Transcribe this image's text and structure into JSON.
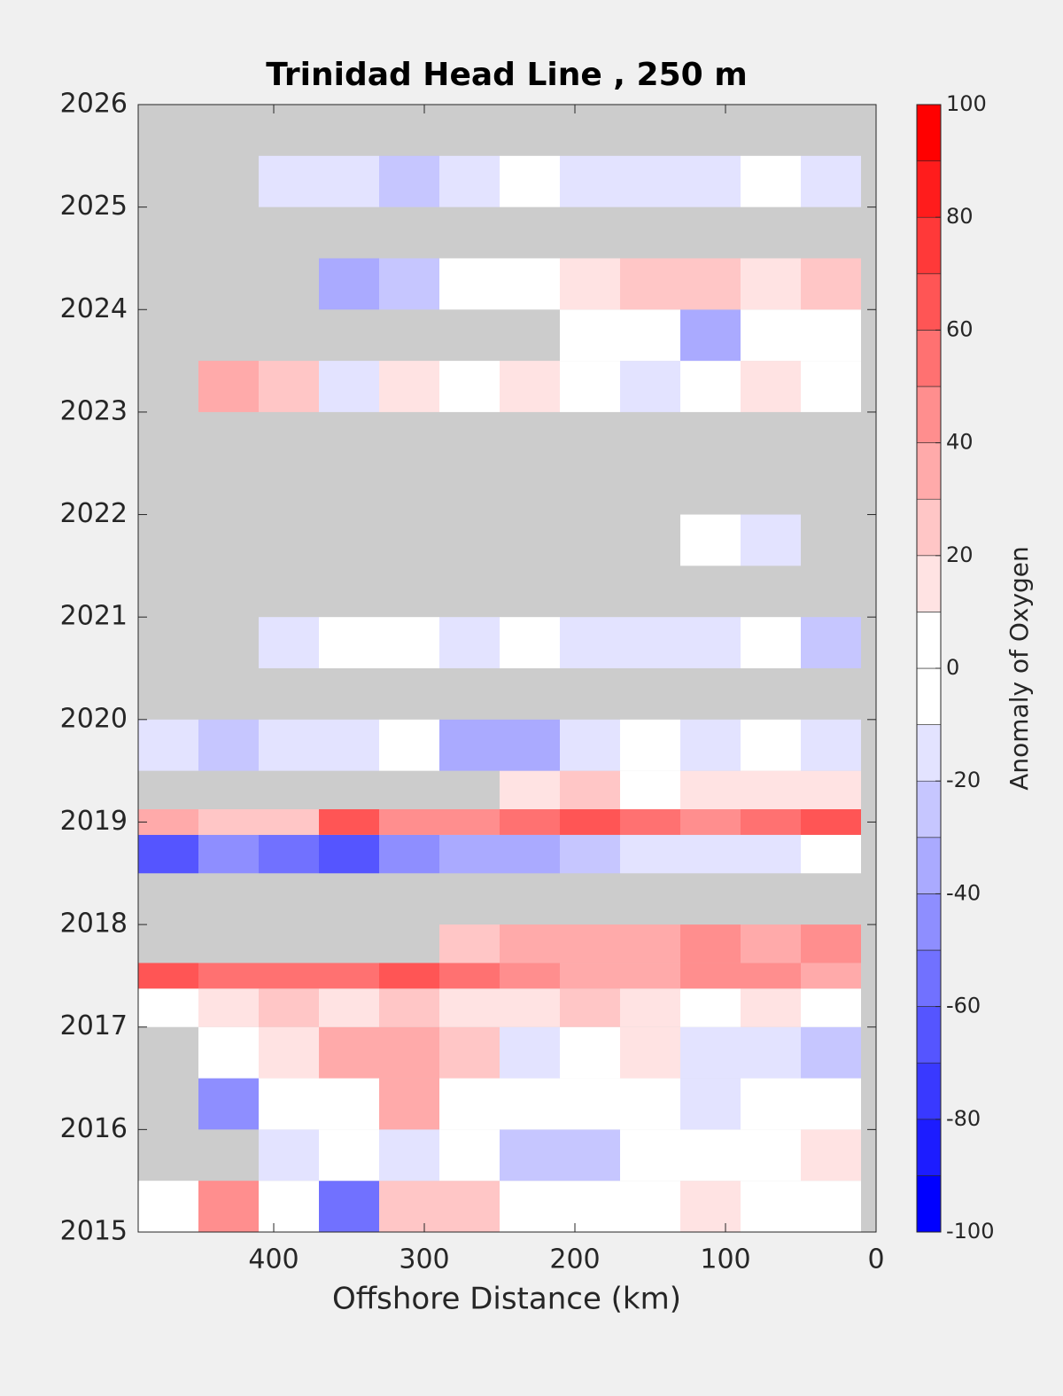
{
  "chart_data": {
    "type": "contour",
    "title": "Trinidad Head Line , 250 m",
    "xlabel": "Offshore Distance (km)",
    "clabel": "Anomaly of Oxygen",
    "x": [
      470,
      430,
      390,
      350,
      310,
      270,
      230,
      190,
      150,
      110,
      70,
      30
    ],
    "y": [
      2015.25,
      2015.75,
      2016.25,
      2016.75,
      2017.25,
      2017.5,
      2017.75,
      2018.25,
      2018.75,
      2019.0,
      2019.25,
      2019.75,
      2020.25,
      2020.75,
      2021.25,
      2021.75,
      2022.25,
      2022.75,
      2023.25,
      2023.75,
      2024.25,
      2024.75,
      2025.25
    ],
    "z": [
      [
        5,
        40,
        -10,
        -60,
        20,
        25,
        -5,
        -10,
        5,
        10,
        5,
        5
      ],
      [
        null,
        null,
        -15,
        -5,
        -20,
        -10,
        -25,
        -30,
        -10,
        -5,
        -10,
        15
      ],
      [
        null,
        -50,
        -10,
        5,
        30,
        5,
        -10,
        -5,
        5,
        -20,
        -5,
        5
      ],
      [
        null,
        -10,
        10,
        35,
        30,
        20,
        -15,
        -5,
        10,
        -20,
        -15,
        -30
      ],
      [
        5,
        15,
        20,
        15,
        20,
        15,
        10,
        20,
        10,
        5,
        10,
        5
      ],
      [
        60,
        55,
        55,
        50,
        65,
        50,
        40,
        35,
        30,
        45,
        40,
        35
      ],
      [
        null,
        null,
        null,
        null,
        null,
        20,
        30,
        35,
        30,
        40,
        30,
        45
      ],
      [
        null,
        null,
        null,
        null,
        null,
        null,
        null,
        null,
        null,
        null,
        null,
        null
      ],
      [
        -65,
        -50,
        -55,
        -70,
        -45,
        -40,
        -35,
        -30,
        -15,
        -20,
        -15,
        -10
      ],
      [
        30,
        20,
        25,
        65,
        40,
        45,
        55,
        60,
        50,
        45,
        55,
        60
      ],
      [
        null,
        null,
        null,
        null,
        null,
        null,
        15,
        20,
        5,
        10,
        15,
        10
      ],
      [
        -15,
        -25,
        -20,
        -15,
        -10,
        -40,
        -35,
        -20,
        -10,
        -15,
        -10,
        -15
      ],
      [
        null,
        null,
        null,
        null,
        null,
        null,
        null,
        null,
        null,
        null,
        null,
        null
      ],
      [
        null,
        null,
        -15,
        -10,
        -10,
        -15,
        -10,
        -15,
        -20,
        -15,
        -10,
        -25
      ],
      [
        null,
        null,
        null,
        null,
        null,
        null,
        null,
        null,
        null,
        null,
        null,
        null
      ],
      [
        null,
        null,
        null,
        null,
        null,
        null,
        null,
        null,
        null,
        -5,
        -15,
        null
      ],
      [
        null,
        null,
        null,
        null,
        null,
        null,
        null,
        null,
        null,
        null,
        null,
        null
      ],
      [
        null,
        null,
        null,
        null,
        null,
        null,
        null,
        null,
        null,
        null,
        null,
        null
      ],
      [
        null,
        30,
        20,
        -15,
        10,
        -5,
        15,
        5,
        -15,
        5,
        15,
        5
      ],
      [
        null,
        null,
        null,
        null,
        null,
        null,
        null,
        5,
        -5,
        -40,
        -10,
        5
      ],
      [
        null,
        null,
        null,
        -40,
        -30,
        -10,
        5,
        10,
        20,
        20,
        15,
        25
      ],
      [
        null,
        null,
        null,
        null,
        null,
        null,
        null,
        null,
        null,
        null,
        null,
        null
      ],
      [
        null,
        null,
        -15,
        -20,
        -25,
        -15,
        5,
        -15,
        -15,
        -15,
        -5,
        -15
      ]
    ],
    "xlim": [
      490,
      0
    ],
    "xticks": [
      0,
      100,
      200,
      300,
      400
    ],
    "ylim": [
      2015,
      2026
    ],
    "yticks": [
      2015,
      2016,
      2017,
      2018,
      2019,
      2020,
      2021,
      2022,
      2023,
      2024,
      2025,
      2026
    ],
    "levels": [
      -100,
      -90,
      -80,
      -70,
      -60,
      -50,
      -40,
      -30,
      -20,
      -10,
      0,
      10,
      20,
      30,
      40,
      50,
      60,
      70,
      80,
      90,
      100
    ],
    "cticks": [
      -100,
      -80,
      -60,
      -40,
      -20,
      0,
      20,
      40,
      60,
      80,
      100
    ],
    "cmap": [
      "#0000ff",
      "#ffffff",
      "#ff0000"
    ],
    "missing_color": "#cccccc"
  }
}
